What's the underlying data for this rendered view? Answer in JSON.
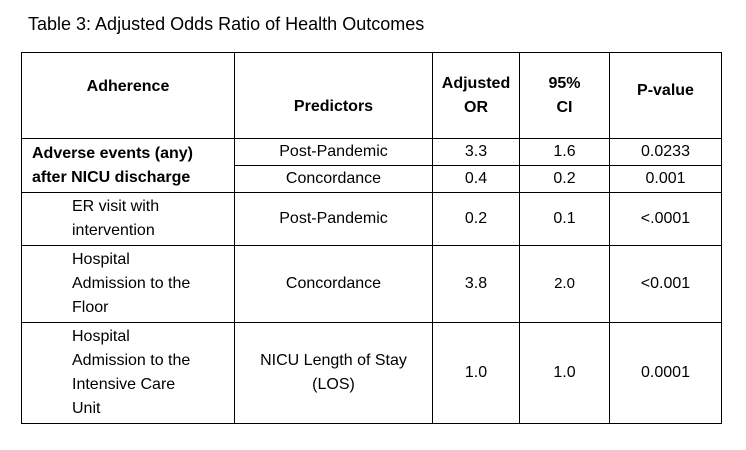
{
  "caption": "Table 3: Adjusted Odds Ratio of Health Outcomes",
  "headers": {
    "adherence": "Adherence",
    "predictors": "Predictors",
    "adjusted_or": [
      "Adjusted",
      "OR"
    ],
    "ci": [
      "95%",
      "CI"
    ],
    "p_value": "P-value"
  },
  "rows": [
    {
      "adherence": [
        "Adverse events (any)",
        "after NICU discharge"
      ],
      "sub": [
        {
          "predictor": "Post-Pandemic",
          "or": "3.3",
          "ci": "1.6",
          "p": "0.0233"
        },
        {
          "predictor": "Concordance",
          "or": "0.4",
          "ci": "0.2",
          "p": "0.001"
        }
      ]
    },
    {
      "adherence": [
        "ER visit with",
        "intervention"
      ],
      "predictor": "Post-Pandemic",
      "or": "0.2",
      "ci": "0.1",
      "p": "<.0001"
    },
    {
      "adherence": [
        "Hospital",
        "Admission to the",
        "Floor"
      ],
      "predictor": "Concordance",
      "or": "3.8",
      "ci": "2.0",
      "p": "<0.001"
    },
    {
      "adherence": [
        "Hospital",
        "Admission to the",
        "Intensive Care",
        "Unit"
      ],
      "predictor": [
        "NICU Length of Stay",
        "(LOS)"
      ],
      "or": "1.0",
      "ci": "1.0",
      "p": "0.0001"
    }
  ]
}
